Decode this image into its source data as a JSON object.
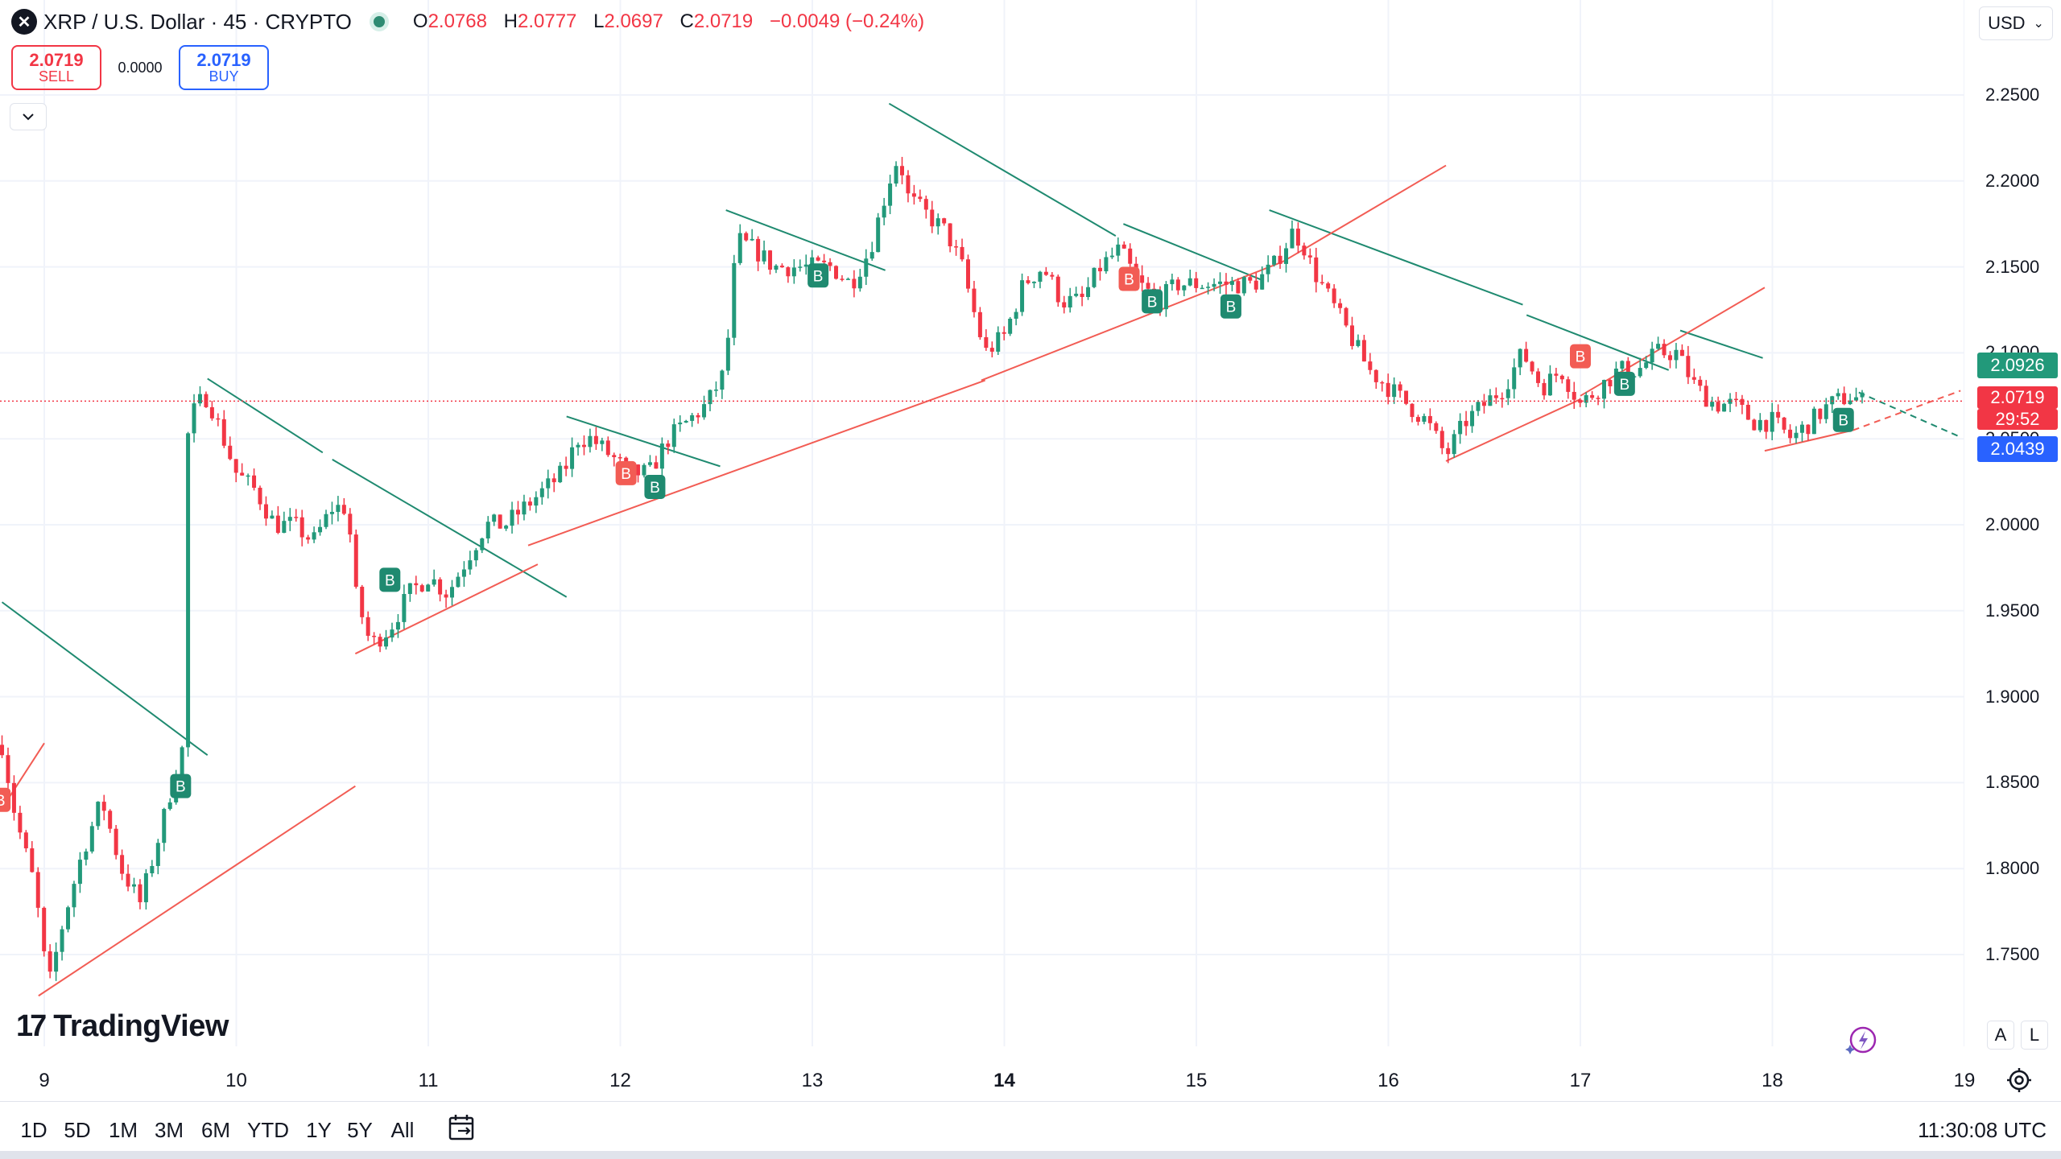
{
  "header": {
    "symbol_icon": "xrp-logo-icon",
    "title": "XRP / U.S. Dollar · 45 · CRYPTO",
    "open_label": "O",
    "open_value": "2.0768",
    "high_label": "H",
    "high_value": "2.0777",
    "low_label": "L",
    "low_value": "2.0697",
    "close_label": "C",
    "close_value": "2.0719",
    "change": "−0.0049 (−0.24%)",
    "up_color": "#22997a",
    "down_color": "#f23645"
  },
  "trade": {
    "sell_price": "2.0719",
    "sell_label": "SELL",
    "spread": "0.0000",
    "buy_price": "2.0719",
    "buy_label": "BUY"
  },
  "currency": "USD",
  "y_axis": {
    "ticks": [
      "2.2500",
      "2.2000",
      "2.1500",
      "2.1000",
      "2.0500",
      "2.0000",
      "1.9500",
      "1.9000",
      "1.8500",
      "1.8000",
      "1.7500"
    ],
    "price_labels": [
      {
        "text": "2.0926",
        "price": 2.0926,
        "color": "#22997a"
      },
      {
        "text": "2.0719",
        "price": 2.0719,
        "color": "#f23645"
      },
      {
        "text": "29:52",
        "price": 2.0719,
        "color": "#f23645"
      },
      {
        "text": "2.0439",
        "price": 2.0439,
        "color": "#2962ff"
      }
    ]
  },
  "x_axis": {
    "ticks": [
      {
        "label": "9",
        "bold": false
      },
      {
        "label": "10",
        "bold": false
      },
      {
        "label": "11",
        "bold": false
      },
      {
        "label": "12",
        "bold": false
      },
      {
        "label": "13",
        "bold": false
      },
      {
        "label": "14",
        "bold": true
      },
      {
        "label": "15",
        "bold": false
      },
      {
        "label": "16",
        "bold": false
      },
      {
        "label": "17",
        "bold": false
      },
      {
        "label": "18",
        "bold": false
      },
      {
        "label": "19",
        "bold": false
      }
    ]
  },
  "logo": "TradingView",
  "scale_buttons": {
    "auto": "A",
    "log": "L"
  },
  "ranges": [
    "1D",
    "5D",
    "1M",
    "3M",
    "6M",
    "YTD",
    "1Y",
    "5Y",
    "All"
  ],
  "clock": "11:30:08 UTC",
  "chart_data": {
    "type": "candlestick",
    "symbol": "XRP / U.S. Dollar",
    "interval": "45",
    "grid": true,
    "x_range": [
      9.0,
      19.0
    ],
    "y_range": [
      1.72,
      2.265
    ],
    "last_price": 2.0719,
    "path": [
      [
        8.78,
        1.872
      ],
      [
        8.85,
        1.83
      ],
      [
        8.95,
        1.79
      ],
      [
        9.02,
        1.73
      ],
      [
        9.1,
        1.77
      ],
      [
        9.2,
        1.81
      ],
      [
        9.3,
        1.84
      ],
      [
        9.4,
        1.8
      ],
      [
        9.5,
        1.78
      ],
      [
        9.6,
        1.82
      ],
      [
        9.67,
        1.85
      ],
      [
        9.72,
        1.87
      ],
      [
        9.75,
        2.06
      ],
      [
        9.8,
        2.07
      ],
      [
        9.85,
        2.075
      ],
      [
        9.9,
        2.06
      ],
      [
        10.0,
        2.03
      ],
      [
        10.1,
        2.02
      ],
      [
        10.2,
        2.0
      ],
      [
        10.3,
        2.0
      ],
      [
        10.4,
        1.99
      ],
      [
        10.5,
        2.01
      ],
      [
        10.58,
        2.01
      ],
      [
        10.62,
        1.96
      ],
      [
        10.7,
        1.93
      ],
      [
        10.8,
        1.94
      ],
      [
        10.9,
        1.96
      ],
      [
        11.0,
        1.97
      ],
      [
        11.1,
        1.96
      ],
      [
        11.2,
        1.98
      ],
      [
        11.3,
        2.0
      ],
      [
        11.4,
        2.0
      ],
      [
        11.5,
        2.01
      ],
      [
        11.6,
        2.02
      ],
      [
        11.7,
        2.03
      ],
      [
        11.78,
        2.05
      ],
      [
        11.85,
        2.05
      ],
      [
        11.95,
        2.04
      ],
      [
        12.05,
        2.03
      ],
      [
        12.15,
        2.03
      ],
      [
        12.25,
        2.05
      ],
      [
        12.35,
        2.06
      ],
      [
        12.45,
        2.07
      ],
      [
        12.55,
        2.09
      ],
      [
        12.58,
        2.14
      ],
      [
        12.62,
        2.165
      ],
      [
        12.7,
        2.16
      ],
      [
        12.8,
        2.15
      ],
      [
        12.9,
        2.15
      ],
      [
        13.0,
        2.15
      ],
      [
        13.1,
        2.15
      ],
      [
        13.2,
        2.14
      ],
      [
        13.3,
        2.16
      ],
      [
        13.4,
        2.2
      ],
      [
        13.45,
        2.215
      ],
      [
        13.5,
        2.19
      ],
      [
        13.6,
        2.18
      ],
      [
        13.7,
        2.17
      ],
      [
        13.78,
        2.15
      ],
      [
        13.85,
        2.12
      ],
      [
        13.9,
        2.1
      ],
      [
        14.0,
        2.11
      ],
      [
        14.1,
        2.14
      ],
      [
        14.2,
        2.15
      ],
      [
        14.3,
        2.13
      ],
      [
        14.4,
        2.13
      ],
      [
        14.5,
        2.15
      ],
      [
        14.6,
        2.16
      ],
      [
        14.7,
        2.14
      ],
      [
        14.8,
        2.13
      ],
      [
        14.9,
        2.14
      ],
      [
        15.0,
        2.14
      ],
      [
        15.1,
        2.14
      ],
      [
        15.2,
        2.14
      ],
      [
        15.3,
        2.14
      ],
      [
        15.4,
        2.15
      ],
      [
        15.5,
        2.17
      ],
      [
        15.55,
        2.165
      ],
      [
        15.6,
        2.15
      ],
      [
        15.7,
        2.13
      ],
      [
        15.8,
        2.11
      ],
      [
        15.9,
        2.09
      ],
      [
        16.0,
        2.08
      ],
      [
        16.1,
        2.07
      ],
      [
        16.2,
        2.06
      ],
      [
        16.3,
        2.04
      ],
      [
        16.4,
        2.06
      ],
      [
        16.5,
        2.07
      ],
      [
        16.6,
        2.08
      ],
      [
        16.7,
        2.1
      ],
      [
        16.8,
        2.08
      ],
      [
        16.9,
        2.09
      ],
      [
        17.0,
        2.07
      ],
      [
        17.1,
        2.08
      ],
      [
        17.2,
        2.09
      ],
      [
        17.3,
        2.09
      ],
      [
        17.4,
        2.1
      ],
      [
        17.5,
        2.1
      ],
      [
        17.6,
        2.08
      ],
      [
        17.7,
        2.07
      ],
      [
        17.8,
        2.07
      ],
      [
        17.9,
        2.06
      ],
      [
        18.0,
        2.06
      ],
      [
        18.1,
        2.05
      ],
      [
        18.2,
        2.06
      ],
      [
        18.3,
        2.07
      ],
      [
        18.4,
        2.075
      ],
      [
        18.47,
        2.0719
      ]
    ]
  }
}
